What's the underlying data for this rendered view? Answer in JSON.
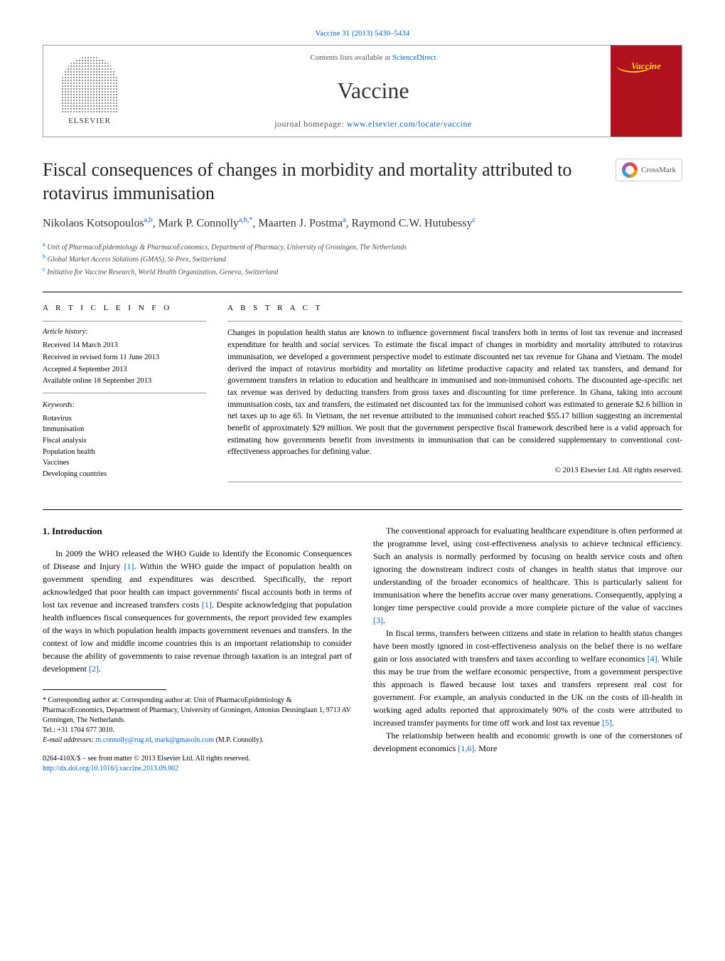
{
  "journal_ref": "Vaccine 31 (2013) 5430–5434",
  "header": {
    "contents_prefix": "Contents lists available at ",
    "contents_link": "ScienceDirect",
    "journal_name": "Vaccine",
    "homepage_prefix": "journal homepage: ",
    "homepage_link": "www.elsevier.com/locate/vaccine",
    "elsevier_label": "ELSEVIER",
    "cover_label": "Vaccine"
  },
  "crossmark_label": "CrossMark",
  "title": "Fiscal consequences of changes in morbidity and mortality attributed to rotavirus immunisation",
  "authors_html": "Nikolaos Kotsopoulos",
  "authors": [
    {
      "name": "Nikolaos Kotsopoulos",
      "sup": "a,b"
    },
    {
      "name": "Mark P. Connolly",
      "sup": "a,b,*"
    },
    {
      "name": "Maarten J. Postma",
      "sup": "a"
    },
    {
      "name": "Raymond C.W. Hutubessy",
      "sup": "c"
    }
  ],
  "affiliations": [
    {
      "sup": "a",
      "text": "Unit of PharmacoEpidemiology & PharmacoEconomics, Department of Pharmacy, University of Groningen, The Netherlands"
    },
    {
      "sup": "b",
      "text": "Global Market Access Solutions (GMAS), St-Prex, Switzerland"
    },
    {
      "sup": "c",
      "text": "Initiative for Vaccine Research, World Health Organization, Geneva, Switzerland"
    }
  ],
  "article_info": {
    "heading": "A R T I C L E   I N F O",
    "history_label": "Article history:",
    "history": [
      "Received 14 March 2013",
      "Received in revised form 11 June 2013",
      "Accepted 4 September 2013",
      "Available online 18 September 2013"
    ],
    "keywords_label": "Keywords:",
    "keywords": [
      "Rotavirus",
      "Immunisation",
      "Fiscal analysis",
      "Population health",
      "Vaccines",
      "Developing countries"
    ]
  },
  "abstract": {
    "heading": "A B S T R A C T",
    "text": "Changes in population health status are known to influence government fiscal transfers both in terms of lost tax revenue and increased expenditure for health and social services. To estimate the fiscal impact of changes in morbidity and mortality attributed to rotavirus immunisation, we developed a government perspective model to estimate discounted net tax revenue for Ghana and Vietnam. The model derived the impact of rotavirus morbidity and mortality on lifetime productive capacity and related tax transfers, and demand for government transfers in relation to education and healthcare in immunised and non-immunised cohorts. The discounted age-specific net tax revenue was derived by deducting transfers from gross taxes and discounting for time preference. In Ghana, taking into account immunisation costs, tax and transfers, the estimated net discounted tax for the immunised cohort was estimated to generate $2.6 billion in net taxes up to age 65. In Vietnam, the net revenue attributed to the immunised cohort reached $55.17 billion suggesting an incremental benefit of approximately $29 million. We posit that the government perspective fiscal framework described here is a valid approach for estimating how governments benefit from investments in immunisation that can be considered supplementary to conventional cost-effectiveness approaches for defining value.",
    "copyright": "© 2013 Elsevier Ltd. All rights reserved."
  },
  "body": {
    "section_heading": "1.  Introduction",
    "col1_p1": "In 2009 the WHO released the WHO Guide to Identify the Economic Consequences of Disease and Injury [1]. Within the WHO guide the impact of population health on government spending and expenditures was described. Specifically, the report acknowledged that poor health can impact governments' fiscal accounts both in terms of lost tax revenue and increased transfers costs [1]. Despite acknowledging that population health influences fiscal consequences for governments, the report provided few examples of the ways in which population health impacts government revenues and transfers. In the context of low and middle income countries this is an important relationship to consider because the ability of governments to raise revenue through taxation is an integral part of development [2].",
    "col2_p1": "The conventional approach for evaluating healthcare expenditure is often performed at the programme level, using cost-effectiveness analysis to achieve technical efficiency. Such an analysis is normally performed by focusing on health service costs and often ignoring the downstream indirect costs of changes in health status that improve our understanding of the broader economics of healthcare. This is particularly salient for immunisation where the benefits accrue over many generations. Consequently, applying a longer time perspective could provide a more complete picture of the value of vaccines [3].",
    "col2_p2": "In fiscal terms, transfers between citizens and state in relation to health status changes have been mostly ignored in cost-effectiveness analysis on the belief there is no welfare gain or loss associated with transfers and taxes according to welfare economics [4]. While this may be true from the welfare economic perspective, from a government perspective this approach is flawed because lost taxes and transfers represent real cost for government. For example, an analysis conducted in the UK on the costs of ill-health in working aged adults reported that approximately 90% of the costs were attributed to increased transfer payments for time off work and lost tax revenue [5].",
    "col2_p3": "The relationship between health and economic growth is one of the cornerstones of development economics [1,6]. More"
  },
  "footnote": {
    "corr_label": "* Corresponding author at: Corresponding author at: Unit of PharmacoEpidemiology & PharmacoEconomics, Department of Pharmacy, University of Groningen, Antonius Deusinglaan 1, 9713 AV Groningen, The Netherlands.",
    "tel": "Tel.: +31 1704 677 3010.",
    "email_label": "E-mail addresses: ",
    "email1": "m.connolly@rug.nl",
    "email_sep": ", ",
    "email2": "mark@gmasoln.com",
    "email_suffix": " (M.P. Connolly)."
  },
  "doi": {
    "issn_line": "0264-410X/$ – see front matter © 2013 Elsevier Ltd. All rights reserved.",
    "doi_link": "http://dx.doi.org/10.1016/j.vaccine.2013.09.002"
  },
  "colors": {
    "link": "#0066cc",
    "cover_bg": "#b01220",
    "cover_text": "#ffd700"
  }
}
